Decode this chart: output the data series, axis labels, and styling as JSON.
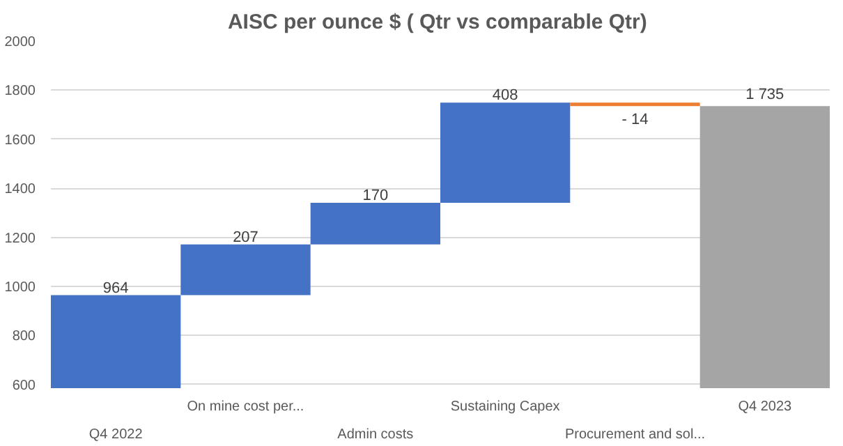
{
  "chart_data": {
    "type": "bar",
    "title": "AISC per ounce $  ( Qtr vs comparable Qtr)",
    "categories": [
      "Q4 2022",
      "On mine cost per...",
      "Admin costs",
      "Sustaining Capex",
      "Procurement and sol...",
      "Q4 2023"
    ],
    "values": [
      964,
      207,
      170,
      408,
      -14,
      1735
    ],
    "base": [
      0,
      964,
      1171,
      1341,
      1749,
      0
    ],
    "colors": [
      "#4472c4",
      "#4472c4",
      "#4472c4",
      "#4472c4",
      "#ed7d31",
      "#a5a5a5"
    ],
    "value_labels": [
      "964",
      "207",
      "170",
      "408",
      "- 14",
      "1 735"
    ],
    "ylim": [
      585,
      2000
    ],
    "yticks": [
      600,
      800,
      1000,
      1200,
      1400,
      1600,
      1800,
      2000
    ],
    "grid": "y"
  }
}
